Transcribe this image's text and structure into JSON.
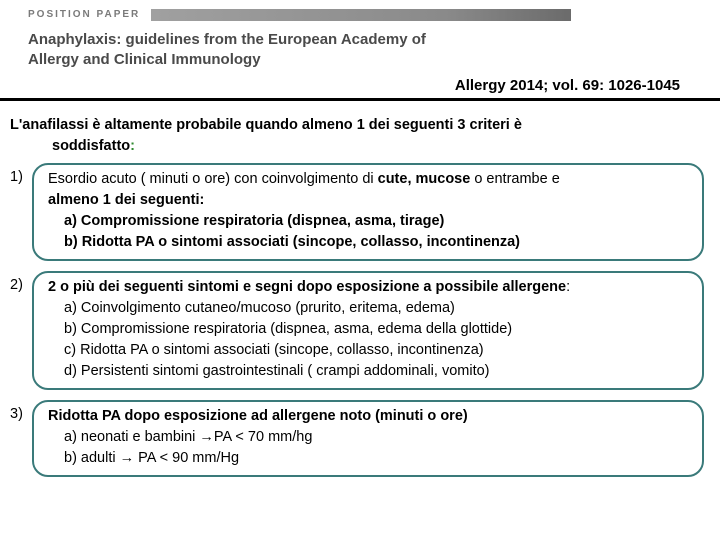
{
  "header": {
    "position_label": "POSITION PAPER",
    "title_line1": "Anaphylaxis: guidelines from the European Academy of",
    "title_line2": "Allergy and Clinical Immunology",
    "citation": "Allergy 2014; vol. 69: 1026-1045"
  },
  "intro": {
    "line1": "L'anafilassi è altamente probabile quando almeno 1 dei seguenti 3 criteri è",
    "line2": "soddisfatto",
    "colon": ":"
  },
  "criteria": [
    {
      "num": "1)",
      "main_a": "Esordio acuto ( minuti o ore) con coinvolgimento di ",
      "main_b": "cute, mucose",
      "main_c": " o entrambe e ",
      "main_d": "almeno 1 dei seguenti:",
      "subs": [
        "a) Compromissione respiratoria (dispnea, asma, tirage)",
        "b) Ridotta PA o sintomi associati (sincope, collasso, incontinenza)"
      ]
    },
    {
      "num": "2)",
      "main": "2 o più dei seguenti sintomi e segni dopo esposizione a possibile allergene",
      "colon": ":",
      "subs": [
        "a) Coinvolgimento cutaneo/mucoso (prurito, eritema, edema)",
        "b) Compromissione respiratoria (dispnea, asma, edema della glottide)",
        "c) Ridotta PA o sintomi associati (sincope, collasso, incontinenza)",
        "d) Persistenti sintomi gastrointestinali ( crampi addominali, vomito)"
      ]
    },
    {
      "num": "3)",
      "main": "Ridotta PA dopo esposizione ad allergene noto (minuti o ore)",
      "subs": [
        "a) neonati e bambini →PA < 70 mm/hg",
        "b) adulti → PA < 90 mm/Hg"
      ]
    }
  ],
  "colors": {
    "box_border": "#3a7a7a",
    "grey_text": "#4a4a4a",
    "green": "#2f8a2f"
  }
}
